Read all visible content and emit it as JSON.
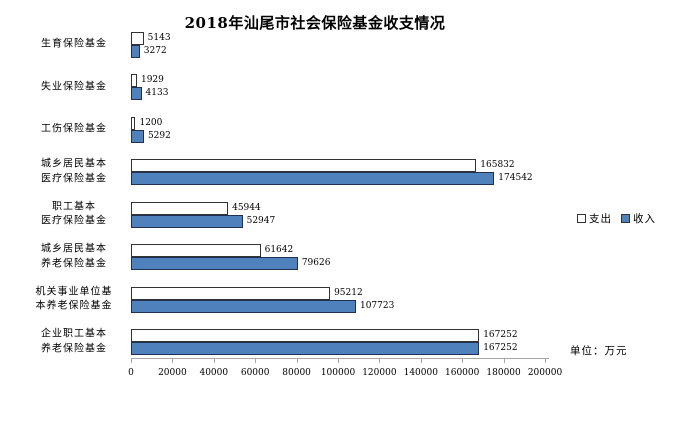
{
  "title": "2018年汕尾市社会保险基金收支情况",
  "unit_note": "单位：万元",
  "colors": {
    "income_bar": "#4F81BD",
    "expenditure_bar": "#FFFFFF",
    "bar_border": "#333333",
    "axis": "#A6A6A6"
  },
  "chart_data": {
    "type": "bar",
    "orientation": "horizontal",
    "title": "2018年汕尾市社会保险基金收支情况",
    "unit": "万元",
    "categories": [
      "生育保险基金",
      "失业保险基金",
      "工伤保险基金",
      "城乡居民基本\n医疗保险基金",
      "职工基本\n医疗保险基金",
      "城乡居民基本\n养老保险基金",
      "机关事业单位基\n本养老保险基金",
      "企业职工基本\n养老保险基金"
    ],
    "series": [
      {
        "name": "支出",
        "color": "#FFFFFF",
        "values": [
          5143,
          1929,
          1200,
          165832,
          45944,
          61642,
          95212,
          167252
        ]
      },
      {
        "name": "收入",
        "color": "#4F81BD",
        "values": [
          3272,
          4133,
          5292,
          174542,
          52947,
          79626,
          107723,
          167252
        ]
      }
    ],
    "xlim": [
      0,
      200000
    ],
    "x_ticks": [
      0,
      20000,
      40000,
      60000,
      80000,
      100000,
      120000,
      140000,
      160000,
      180000,
      200000
    ],
    "grid": false,
    "legend_position": "right",
    "data_labels": true
  }
}
